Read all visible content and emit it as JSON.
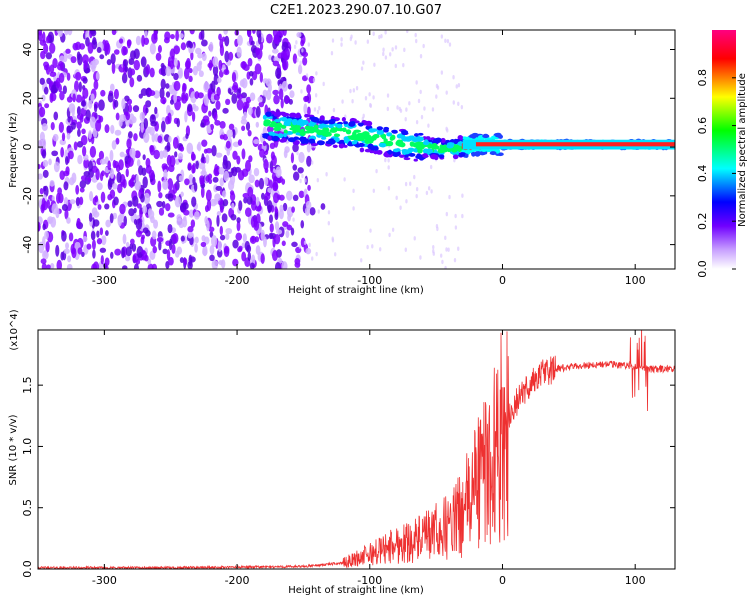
{
  "title": "C2E1.2023.290.07.10.G07",
  "chart_data": [
    {
      "type": "heatmap",
      "xlabel": "Height of straight line (km)",
      "ylabel": "Frequency (Hz)",
      "xlim": [
        -350,
        130
      ],
      "ylim": [
        -50,
        48
      ],
      "x_ticks": [
        -300,
        -200,
        -100,
        0,
        100
      ],
      "y_ticks": [
        -40,
        -20,
        0,
        20,
        40
      ],
      "colorbar": {
        "label": "Normalized spectral amplitude",
        "range": [
          0.0,
          1.0
        ],
        "ticks": [
          "0.0",
          "0.2",
          "0.4",
          "0.6",
          "0.8"
        ],
        "colormap": [
          "#ffffff",
          "#c8a0ff",
          "#7000ff",
          "#0000ff",
          "#00ffff",
          "#00ff00",
          "#ffff00",
          "#ff0000",
          "#ff0080"
        ]
      },
      "ridge": {
        "x": [
          -180,
          -150,
          -120,
          -100,
          -80,
          -60,
          -40,
          -20,
          0,
          30,
          60,
          90,
          130
        ],
        "center_freq": [
          9,
          7,
          6,
          4,
          2,
          0,
          -1,
          1,
          1,
          1,
          1,
          1,
          1
        ]
      }
    },
    {
      "type": "line",
      "xlabel": "Height of straight line (km)",
      "ylabel": "SNR (10 * v/v)",
      "y_multiplier": "(x10^4)",
      "xlim": [
        -350,
        130
      ],
      "ylim": [
        0,
        1.95
      ],
      "x_ticks": [
        -300,
        -200,
        -100,
        0,
        100
      ],
      "y_ticks": [
        "0.0",
        "0.5",
        "1.0",
        "1.5"
      ],
      "color": "#ee3030",
      "series": [
        {
          "x": [
            -350,
            -250,
            -200,
            -150,
            -120,
            -100,
            -80,
            -60,
            -40,
            -30,
            -20,
            -10,
            0,
            10,
            20,
            30,
            40,
            60,
            80,
            100,
            110,
            130
          ],
          "values": [
            0.01,
            0.01,
            0.015,
            0.02,
            0.05,
            0.12,
            0.2,
            0.25,
            0.35,
            0.45,
            0.7,
            0.85,
            1.1,
            1.35,
            1.5,
            1.6,
            1.63,
            1.66,
            1.67,
            1.66,
            1.63,
            1.63
          ]
        }
      ]
    }
  ]
}
